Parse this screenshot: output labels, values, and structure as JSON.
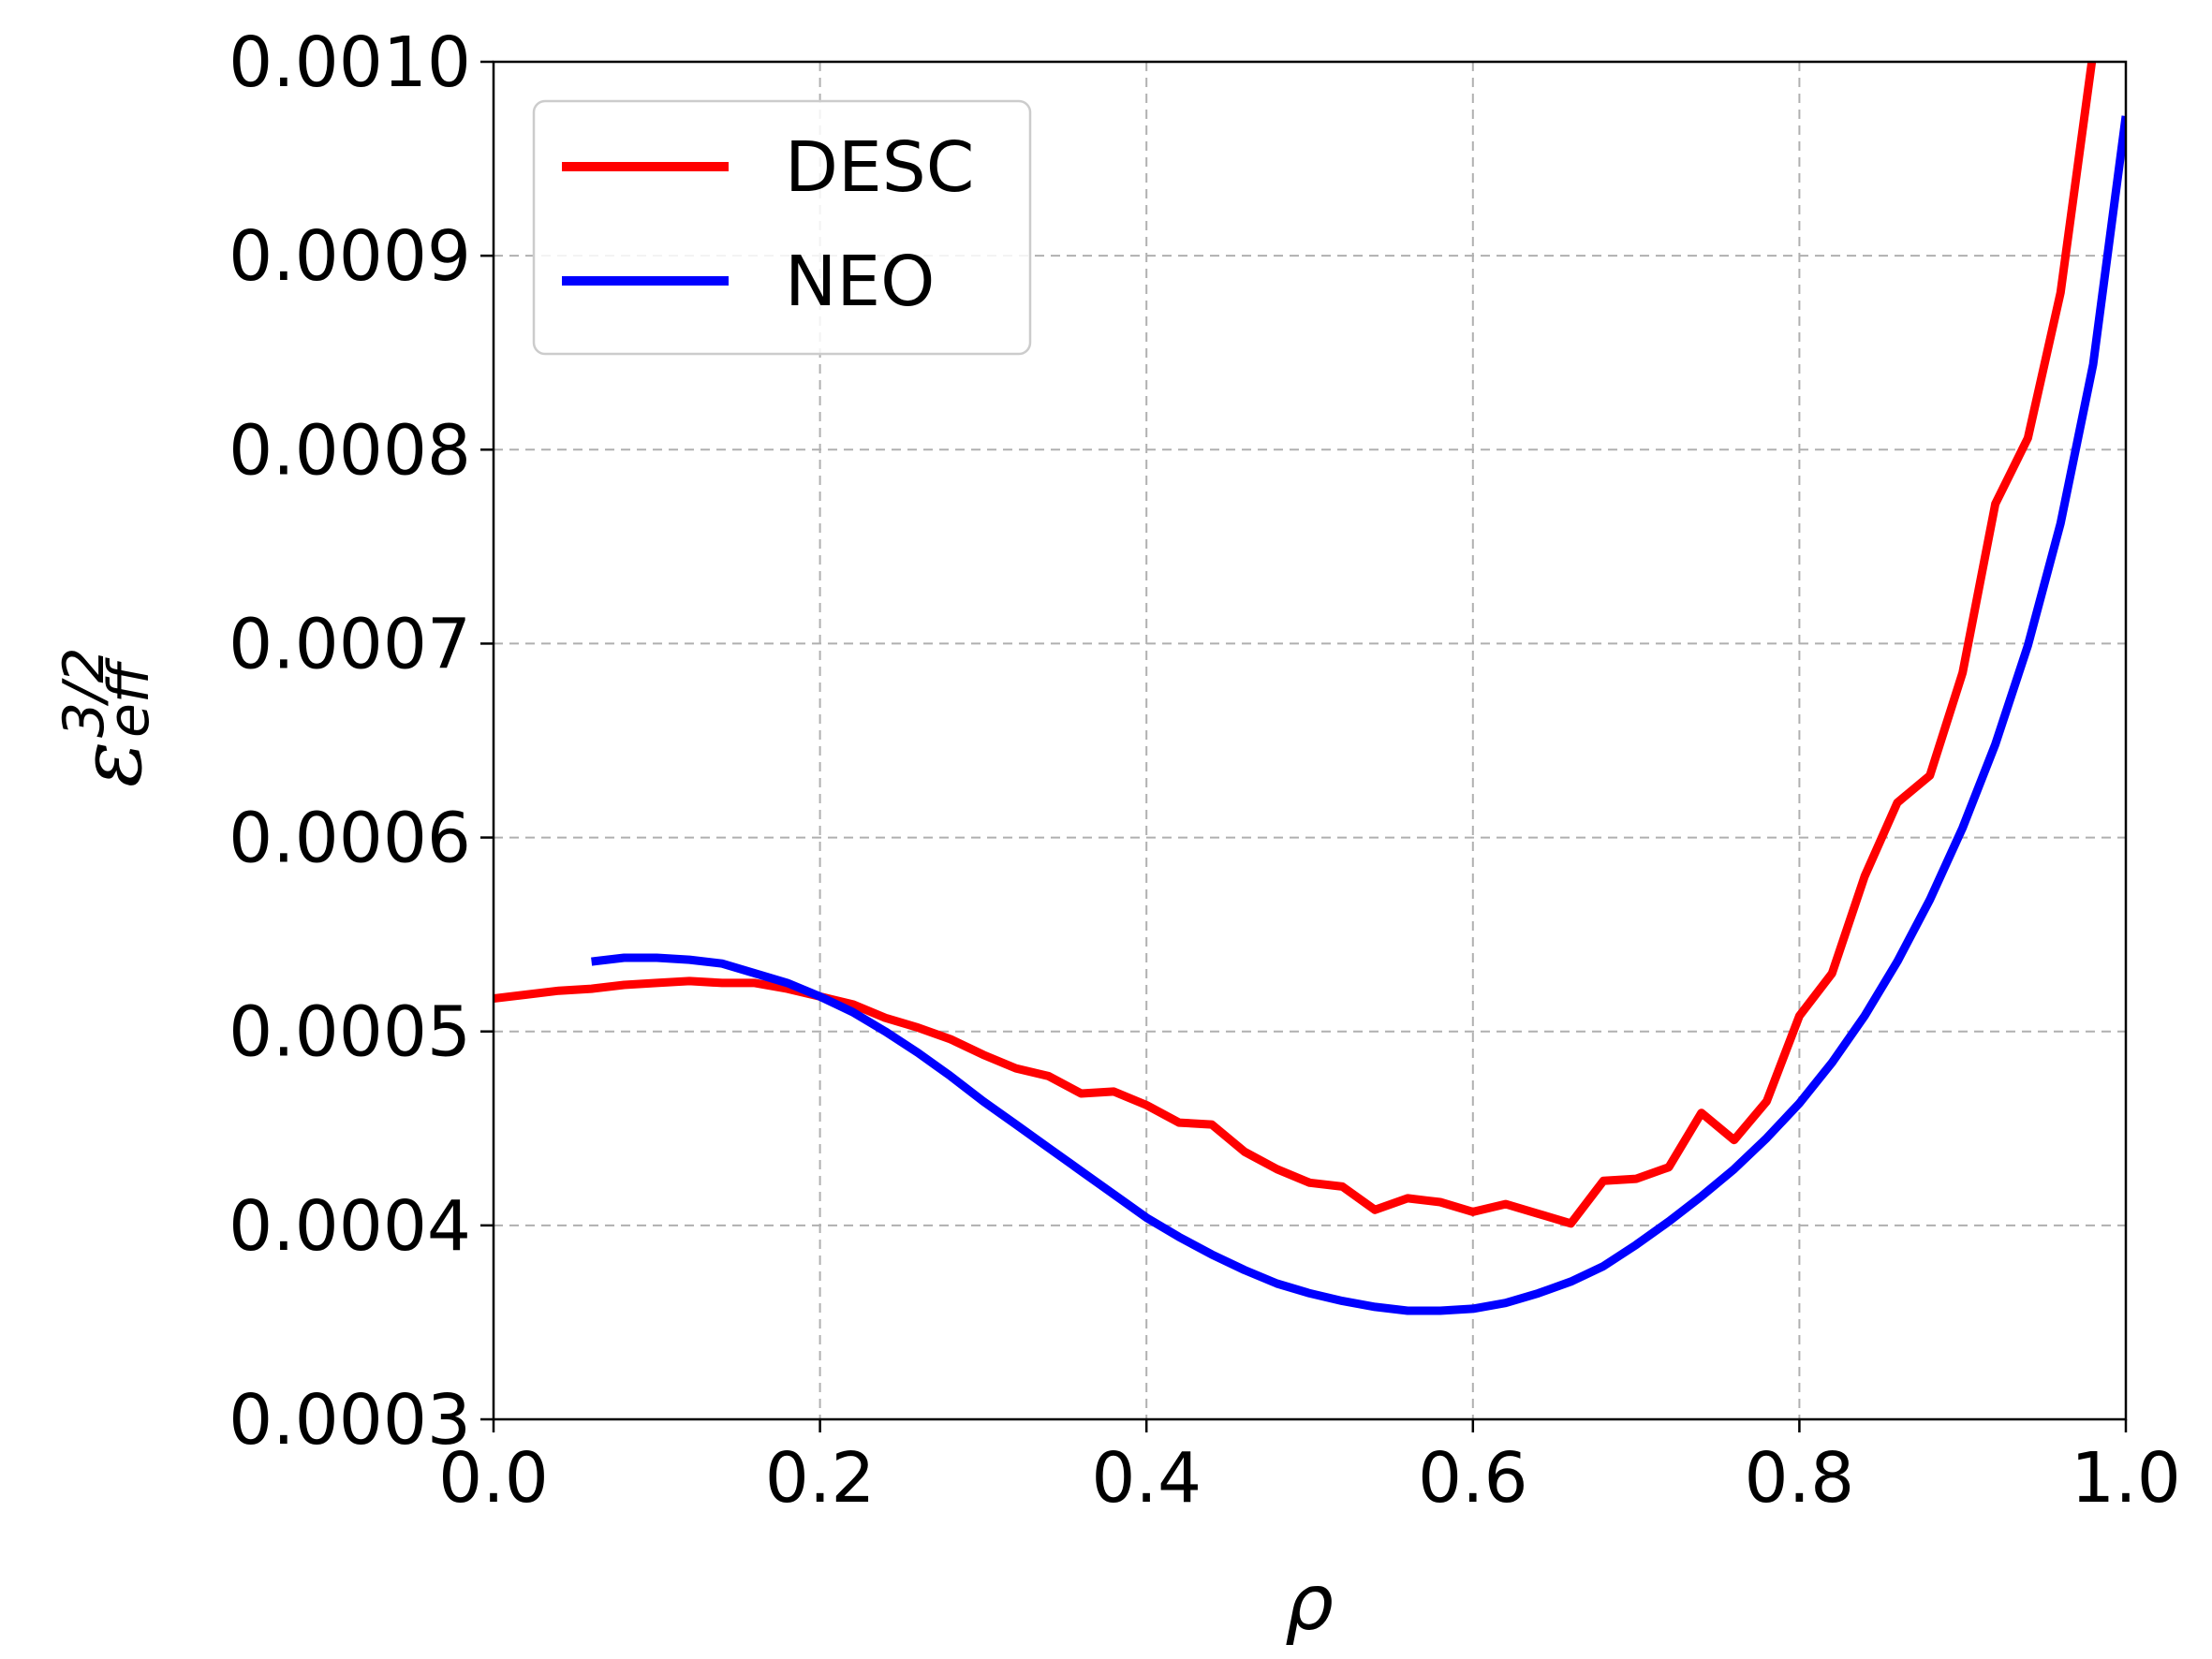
{
  "chart_data": {
    "type": "line",
    "xlabel": "ρ",
    "ylabel": {
      "base": "ε",
      "sup": "3/2",
      "sub": "eff"
    },
    "xlim": [
      0.0,
      1.0
    ],
    "ylim": [
      0.0003,
      0.001
    ],
    "xticks": [
      "0.0",
      "0.2",
      "0.4",
      "0.6",
      "0.8",
      "1.0"
    ],
    "yticks": [
      "0.0003",
      "0.0004",
      "0.0005",
      "0.0006",
      "0.0007",
      "0.0008",
      "0.0009",
      "0.0010"
    ],
    "grid": true,
    "legend": {
      "placement": "top-left"
    },
    "series": [
      {
        "name": "DESC",
        "color": "#ff0000",
        "x": [
          0.0,
          0.02,
          0.04,
          0.06,
          0.08,
          0.1,
          0.12,
          0.14,
          0.16,
          0.18,
          0.2,
          0.22,
          0.24,
          0.26,
          0.28,
          0.3,
          0.32,
          0.34,
          0.36,
          0.38,
          0.4,
          0.42,
          0.44,
          0.46,
          0.48,
          0.5,
          0.52,
          0.54,
          0.56,
          0.58,
          0.6,
          0.62,
          0.64,
          0.66,
          0.68,
          0.7,
          0.72,
          0.74,
          0.76,
          0.78,
          0.8,
          0.82,
          0.84,
          0.86,
          0.88,
          0.9,
          0.92,
          0.94,
          0.96,
          0.98,
          1.0
        ],
        "y": [
          0.000517,
          0.000519,
          0.000521,
          0.000522,
          0.000524,
          0.000525,
          0.000526,
          0.000525,
          0.000525,
          0.000522,
          0.000518,
          0.000514,
          0.000507,
          0.000502,
          0.000496,
          0.000488,
          0.000481,
          0.000477,
          0.000468,
          0.000469,
          0.000462,
          0.000453,
          0.000452,
          0.000438,
          0.000429,
          0.000422,
          0.00042,
          0.000408,
          0.000414,
          0.000412,
          0.000407,
          0.000411,
          0.000406,
          0.000401,
          0.000423,
          0.000424,
          0.00043,
          0.000458,
          0.000444,
          0.000464,
          0.000508,
          0.00053,
          0.00058,
          0.000618,
          0.000632,
          0.000685,
          0.000772,
          0.000806,
          0.000881,
          0.001005,
          0.001005
        ]
      },
      {
        "name": "NEO",
        "color": "#0000ff",
        "x": [
          0.06,
          0.08,
          0.1,
          0.12,
          0.14,
          0.16,
          0.18,
          0.2,
          0.22,
          0.24,
          0.26,
          0.28,
          0.3,
          0.32,
          0.34,
          0.36,
          0.38,
          0.4,
          0.42,
          0.44,
          0.46,
          0.48,
          0.5,
          0.52,
          0.54,
          0.56,
          0.58,
          0.6,
          0.62,
          0.64,
          0.66,
          0.68,
          0.7,
          0.72,
          0.74,
          0.76,
          0.78,
          0.8,
          0.82,
          0.84,
          0.86,
          0.88,
          0.9,
          0.92,
          0.94,
          0.96,
          0.98,
          1.0
        ],
        "y": [
          0.000536,
          0.000538,
          0.000538,
          0.000537,
          0.000535,
          0.00053,
          0.000525,
          0.000518,
          0.00051,
          0.0005,
          0.000489,
          0.000477,
          0.000464,
          0.000452,
          0.00044,
          0.000428,
          0.000416,
          0.000404,
          0.000394,
          0.000385,
          0.000377,
          0.00037,
          0.000365,
          0.000361,
          0.000358,
          0.000356,
          0.000356,
          0.000357,
          0.00036,
          0.000365,
          0.000371,
          0.000379,
          0.00039,
          0.000402,
          0.000415,
          0.000429,
          0.000445,
          0.000463,
          0.000484,
          0.000508,
          0.000536,
          0.000568,
          0.000605,
          0.000648,
          0.000699,
          0.000762,
          0.000844,
          0.000972
        ]
      }
    ]
  }
}
